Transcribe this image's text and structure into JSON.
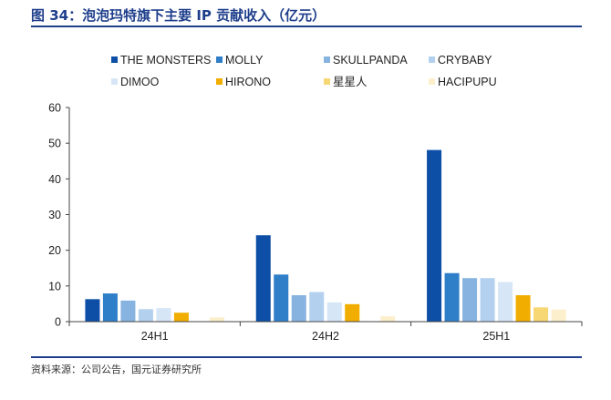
{
  "header": {
    "title": "图 34：泡泡玛特旗下主要 IP 贡献收入（亿元）"
  },
  "footer": {
    "source": "资料来源：公司公告，国元证券研究所"
  },
  "chart_data": {
    "type": "bar",
    "title": "",
    "xlabel": "",
    "ylabel": "",
    "ylim": [
      0,
      60
    ],
    "yticks": [
      0,
      10,
      20,
      30,
      40,
      50,
      60
    ],
    "grid": false,
    "legend_position": "top",
    "categories": [
      "24H1",
      "24H2",
      "25H1"
    ],
    "series": [
      {
        "name": "THE MONSTERS",
        "color": "#0d4ea6",
        "values": [
          6.3,
          24.2,
          48.1
        ]
      },
      {
        "name": "MOLLY",
        "color": "#2f7fc8",
        "values": [
          7.9,
          13.2,
          13.6
        ]
      },
      {
        "name": "SKULLPANDA",
        "color": "#86b3e0",
        "values": [
          5.9,
          7.4,
          12.2
        ]
      },
      {
        "name": "CRYBABY",
        "color": "#b3d1ef",
        "values": [
          3.5,
          8.3,
          12.2
        ]
      },
      {
        "name": "DIMOO",
        "color": "#d6e6f6",
        "values": [
          3.8,
          5.4,
          11.1
        ]
      },
      {
        "name": "HIRONO",
        "color": "#f2ae00",
        "values": [
          2.5,
          4.9,
          7.4
        ]
      },
      {
        "name": "星星人",
        "color": "#f7d774",
        "values": [
          0.1,
          0.1,
          4.0
        ]
      },
      {
        "name": "HACIPUPU",
        "color": "#fbefcc",
        "values": [
          1.2,
          1.5,
          3.4
        ]
      }
    ]
  }
}
